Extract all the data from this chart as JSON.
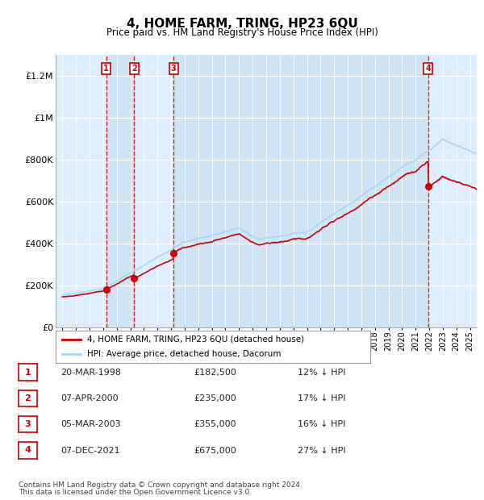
{
  "title": "4, HOME FARM, TRING, HP23 6QU",
  "subtitle": "Price paid vs. HM Land Registry's House Price Index (HPI)",
  "legend_line1": "4, HOME FARM, TRING, HP23 6QU (detached house)",
  "legend_line2": "HPI: Average price, detached house, Dacorum",
  "footer1": "Contains HM Land Registry data © Crown copyright and database right 2024.",
  "footer2": "This data is licensed under the Open Government Licence v3.0.",
  "purchases": [
    {
      "num": 1,
      "date": "20-MAR-1998",
      "price": 182500,
      "pct": "12%",
      "year": 1998.22
    },
    {
      "num": 2,
      "date": "07-APR-2000",
      "price": 235000,
      "pct": "17%",
      "year": 2000.27
    },
    {
      "num": 3,
      "date": "05-MAR-2003",
      "price": 355000,
      "pct": "16%",
      "year": 2003.18
    },
    {
      "num": 4,
      "date": "07-DEC-2021",
      "price": 675000,
      "pct": "27%",
      "year": 2021.93
    }
  ],
  "hpi_color": "#aad4f5",
  "price_color": "#cc0000",
  "dot_color": "#cc0000",
  "vline_color": "#cc0000",
  "plot_bg": "#ddeeff",
  "stripe_color": "#c8dff0",
  "grid_color": "#ffffff",
  "ylim": [
    0,
    1300000
  ],
  "xlim_start": 1994.5,
  "xlim_end": 2025.5,
  "yticks": [
    0,
    200000,
    400000,
    600000,
    800000,
    1000000,
    1200000
  ],
  "ytick_labels": [
    "£0",
    "£200K",
    "£400K",
    "£600K",
    "£800K",
    "£1M",
    "£1.2M"
  ]
}
